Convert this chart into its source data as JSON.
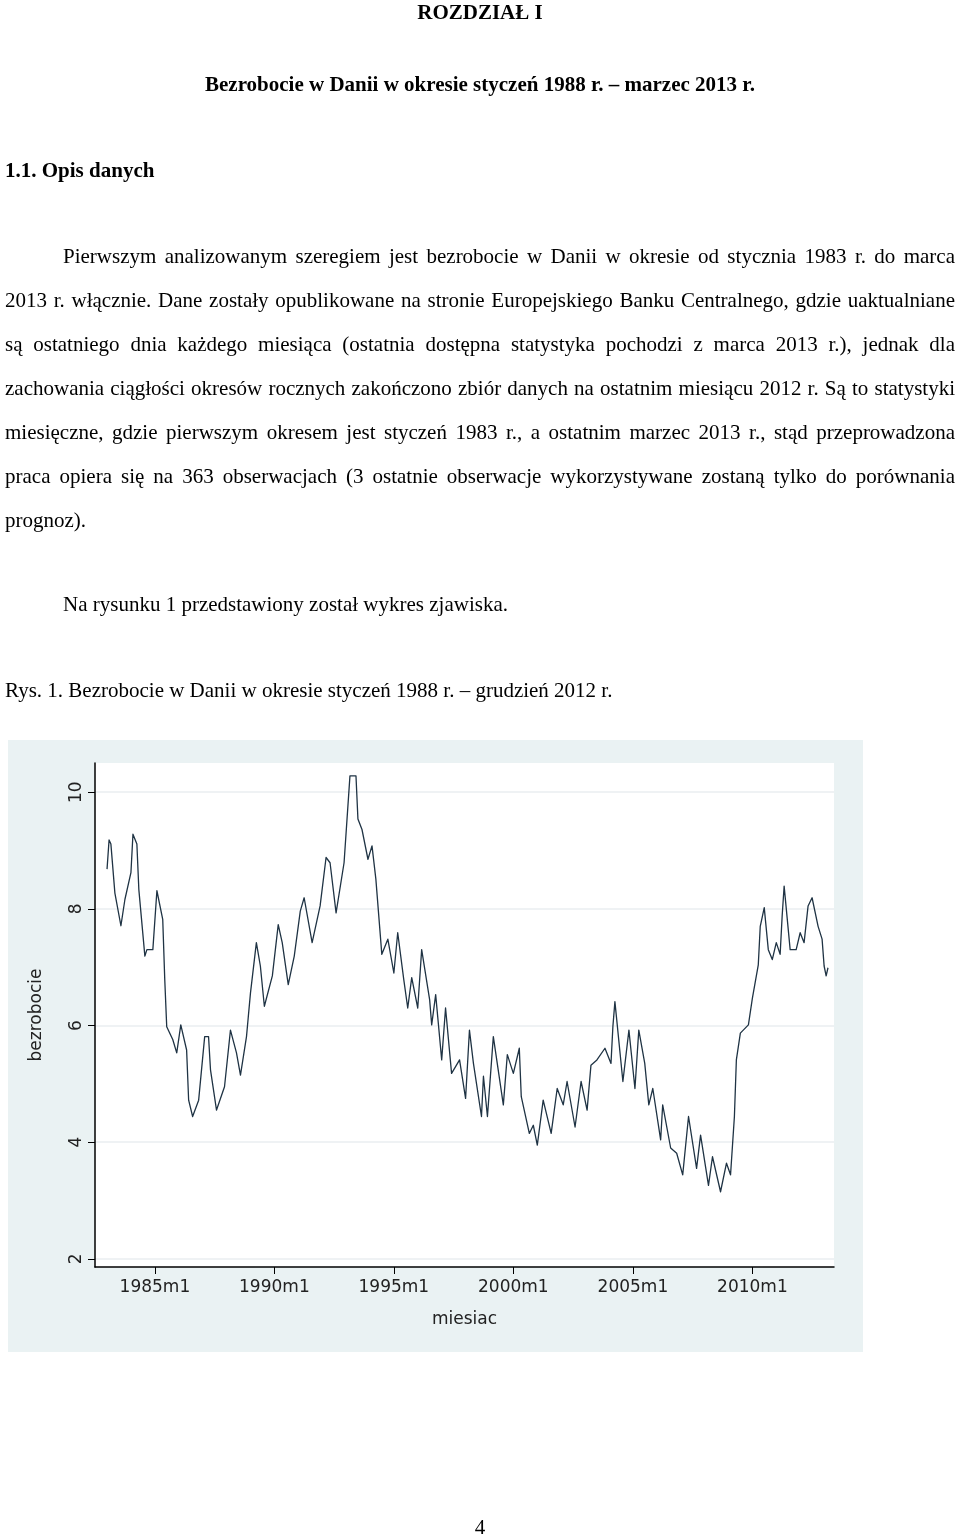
{
  "chart_data": {
    "type": "line",
    "title": "ROZDZIAŁ I",
    "subtitle": "Bezrobocie w Danii w okresie styczeń 1988 r. – marzec 2013 r.",
    "annotations": [
      "1.1. Opis danych",
      "Pierwszym analizowanym szeregiem jest bezrobocie w Danii w okresie od stycznia 1983 r. do marca 2013 r. włącznie. Dane zostały opublikowane na stronie Europejskiego Banku Centralnego, gdzie uaktualniane są ostatniego dnia każdego miesiąca (ostatnia dostępna statystyka pochodzi z marca 2013 r.), jednak dla zachowania ciągłości okresów rocznych zakończono zbiór danych na ostatnim miesiącu 2012 r. Są to statystyki miesięczne, gdzie pierwszym okresem jest styczeń 1983 r., a ostatnim marzec 2013 r., stąd przeprowadzona praca opiera się na 363 obserwacjach (3 ostatnie obserwacje wykorzystywane zostaną tylko do porównania prognoz).",
      "Na rysunku 1 przedstawiony został wykres zjawiska.",
      "Rys. 1. Bezrobocie w Danii w okresie styczeń 1988 r. – grudzień 2012 r.",
      "4"
    ],
    "xlabel": "miesiac",
    "ylabel": "bezrobocie",
    "series": [
      {
        "color": "#1f3344",
        "x": [
          "1983-01",
          "1983-02",
          "1983-03",
          "1983-05",
          "1983-08",
          "1983-10",
          "1984-01",
          "1984-02",
          "1984-04",
          "1984-05",
          "1984-08",
          "1984-09",
          "1984-12",
          "1985-02",
          "1985-05",
          "1985-06",
          "1985-07",
          "1985-10",
          "1985-12",
          "1986-02",
          "1986-05",
          "1986-06",
          "1986-08",
          "1986-11",
          "1987-02",
          "1987-04",
          "1987-05",
          "1987-08",
          "1987-12",
          "1988-03",
          "1988-06",
          "1988-08",
          "1988-11",
          "1989-01",
          "1989-04",
          "1989-06",
          "1989-08",
          "1989-12",
          "1990-03",
          "1990-05",
          "1990-08",
          "1990-11",
          "1991-02",
          "1991-04",
          "1991-08",
          "1991-12",
          "1992-03",
          "1992-05",
          "1992-08",
          "1992-12",
          "1993-03",
          "1993-06",
          "1993-07",
          "1993-09",
          "1993-12",
          "1994-02",
          "1994-04",
          "1994-07",
          "1994-10",
          "1995-01",
          "1995-03",
          "1995-06",
          "1995-08",
          "1995-10",
          "1996-01",
          "1996-03",
          "1996-07",
          "1996-08",
          "1996-10",
          "1997-01",
          "1997-03",
          "1997-06",
          "1997-10",
          "1998-01",
          "1998-03",
          "1998-05",
          "1998-09",
          "1998-10",
          "1998-12",
          "1999-03",
          "1999-08",
          "1999-10",
          "2000-01",
          "2000-04",
          "2000-05",
          "2000-09",
          "2000-11",
          "2001-01",
          "2001-04",
          "2001-08",
          "2001-11",
          "2002-02",
          "2002-04",
          "2002-08",
          "2002-11",
          "2003-02",
          "2003-04",
          "2003-07",
          "2003-11",
          "2004-02",
          "2004-03",
          "2004-04",
          "2004-08",
          "2004-11",
          "2005-02",
          "2005-04",
          "2005-07",
          "2005-09",
          "2005-11",
          "2006-03",
          "2006-04",
          "2006-08",
          "2006-11",
          "2007-02",
          "2007-05",
          "2007-09",
          "2007-11",
          "2008-03",
          "2008-05",
          "2008-09",
          "2008-12",
          "2009-02",
          "2009-04",
          "2009-05",
          "2009-07",
          "2009-11",
          "2010-01",
          "2010-04",
          "2010-05",
          "2010-07",
          "2010-09",
          "2010-11",
          "2011-01",
          "2011-03",
          "2011-04",
          "2011-05",
          "2011-08",
          "2011-11",
          "2012-01",
          "2012-03",
          "2012-05",
          "2012-07",
          "2012-10",
          "2012-12",
          "2013-01",
          "2013-02",
          "2013-03"
        ],
        "values": [
          8.68,
          9.18,
          9.11,
          8.27,
          7.71,
          8.16,
          8.62,
          9.28,
          9.11,
          8.33,
          7.19,
          7.3,
          7.3,
          8.31,
          7.82,
          6.79,
          5.98,
          5.76,
          5.53,
          6.01,
          5.58,
          4.72,
          4.44,
          4.72,
          5.81,
          5.81,
          5.24,
          4.55,
          4.95,
          5.92,
          5.53,
          5.15,
          5.81,
          6.56,
          7.42,
          7.02,
          6.33,
          6.85,
          7.73,
          7.42,
          6.7,
          7.19,
          7.96,
          8.19,
          7.42,
          8.05,
          8.88,
          8.79,
          7.93,
          8.79,
          10.28,
          10.28,
          9.54,
          9.36,
          8.85,
          9.08,
          8.51,
          7.22,
          7.48,
          6.9,
          7.59,
          6.79,
          6.3,
          6.82,
          6.3,
          7.3,
          6.44,
          6.01,
          6.53,
          5.41,
          6.3,
          5.18,
          5.41,
          4.75,
          5.92,
          5.35,
          4.44,
          5.13,
          4.44,
          5.81,
          4.64,
          5.5,
          5.18,
          5.61,
          4.78,
          4.15,
          4.29,
          3.95,
          4.72,
          4.15,
          4.92,
          4.64,
          5.04,
          4.26,
          5.04,
          4.55,
          5.32,
          5.41,
          5.61,
          5.35,
          5.98,
          6.41,
          5.04,
          5.92,
          4.92,
          5.92,
          5.35,
          4.64,
          4.92,
          4.04,
          4.64,
          3.9,
          3.81,
          3.44,
          4.44,
          3.55,
          4.12,
          3.26,
          3.75,
          3.15,
          3.64,
          3.44,
          4.44,
          5.41,
          5.87,
          6.01,
          6.47,
          7.04,
          7.7,
          8.02,
          7.3,
          7.13,
          7.42,
          7.22,
          7.88,
          8.39,
          7.3,
          7.3,
          7.59,
          7.42,
          8.05,
          8.19,
          7.7,
          7.48,
          7.02,
          6.85,
          6.99
        ]
      }
    ],
    "xlim": [
      "1982-07",
      "2013-06"
    ],
    "xticks": [
      {
        "value": "1985-01",
        "label": "1985m1"
      },
      {
        "value": "1990-01",
        "label": "1990m1"
      },
      {
        "value": "1995-01",
        "label": "1995m1"
      },
      {
        "value": "2000-01",
        "label": "2000m1"
      },
      {
        "value": "2005-01",
        "label": "2005m1"
      },
      {
        "value": "2010-01",
        "label": "2010m1"
      }
    ],
    "ylim": [
      1.86,
      10.5
    ],
    "yticks": [
      2,
      4,
      6,
      8,
      10
    ],
    "grid": "y",
    "marker": "none",
    "line_style": "solid"
  }
}
